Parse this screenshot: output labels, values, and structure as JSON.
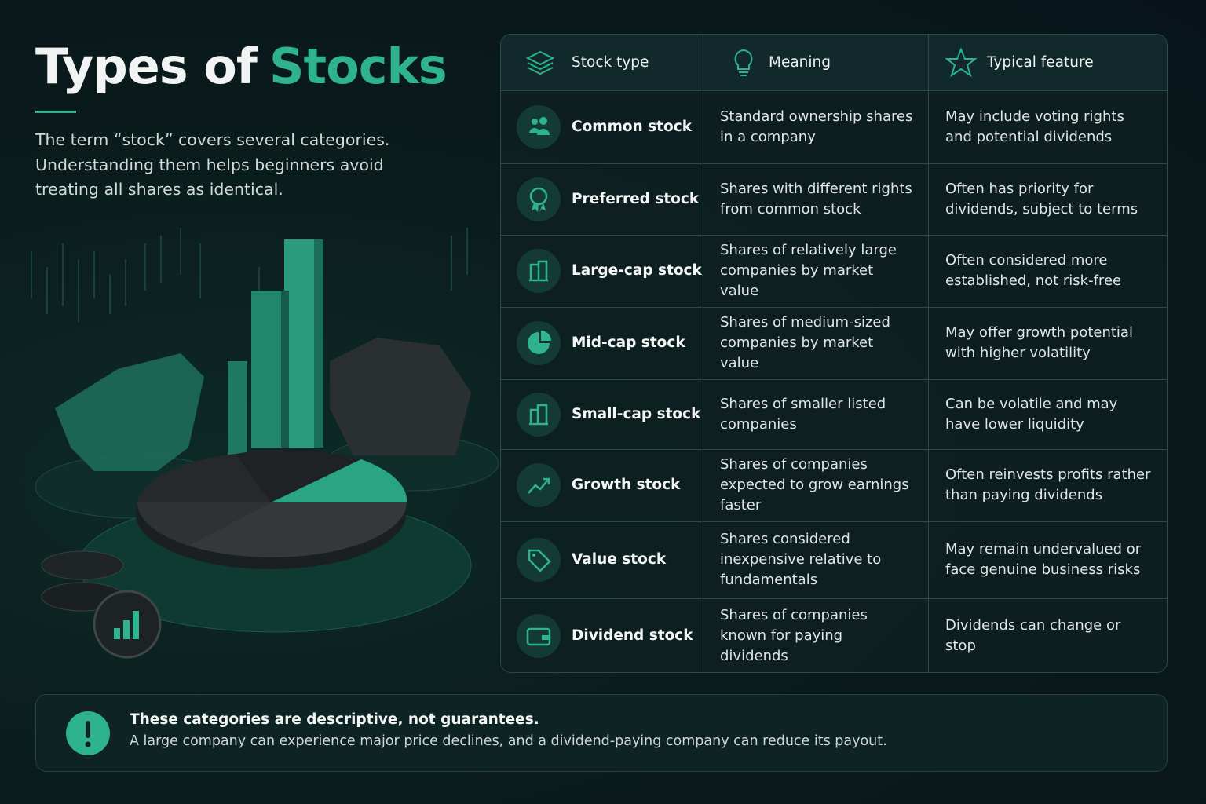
{
  "header": {
    "title_lead": "Types of",
    "title_accent": "Stocks",
    "subtitle": "The term “stock” covers several categories. Understanding them helps beginners avoid treating all shares as identical."
  },
  "table": {
    "columns": [
      "Stock type",
      "Meaning",
      "Typical feature"
    ],
    "rows": [
      [
        "Common stock",
        "Standard ownership shares in a company",
        "May include voting rights and potential dividends"
      ],
      [
        "Preferred stock",
        "Shares with different rights from common stock",
        "Often has priority for dividends, subject to terms"
      ],
      [
        "Large-cap stock",
        "Shares of relatively large companies by market value",
        "Often considered more established, not risk-free"
      ],
      [
        "Mid-cap stock",
        "Shares of medium-sized companies by market value",
        "May offer growth potential with higher volatility"
      ],
      [
        "Small-cap stock",
        "Shares of smaller listed companies",
        "Can be volatile and may have lower liquidity"
      ],
      [
        "Growth stock",
        "Shares of companies expected to grow earnings faster",
        "Often reinvests profits rather than paying dividends"
      ],
      [
        "Value stock",
        "Shares considered inexpensive relative to fundamentals",
        "May remain undervalued or face genuine business risks"
      ],
      [
        "Dividend stock",
        "Shares of companies known for paying dividends",
        "Dividends can change or stop"
      ]
    ]
  },
  "note": {
    "title": "These categories are descriptive, not guarantees.",
    "text": "A large company can experience major price declines, and a dividend-paying company can reduce its payout."
  }
}
